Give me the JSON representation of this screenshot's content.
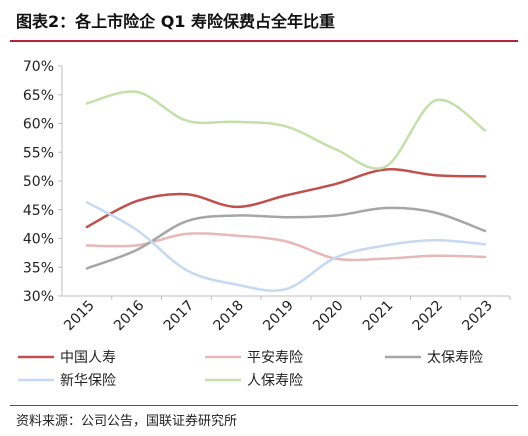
{
  "header": {
    "title": "图表2：各上市险企 Q1 寿险保费占全年比重"
  },
  "footer": {
    "source": "资料来源：公司公告，国联证券研究所"
  },
  "chart_data": {
    "type": "line",
    "title": "图表2：各上市险企 Q1 寿险保费占全年比重",
    "x": [
      "2015",
      "2016",
      "2017",
      "2018",
      "2019",
      "2020",
      "2021",
      "2022",
      "2023"
    ],
    "ylim": [
      0.3,
      0.7
    ],
    "yticks": [
      "30%",
      "35%",
      "40%",
      "45%",
      "50%",
      "55%",
      "60%",
      "65%",
      "70%"
    ],
    "grid": false,
    "legend_position": "bottom",
    "series": [
      {
        "name": "中国人寿",
        "color": "#c0504d",
        "values": [
          0.42,
          0.465,
          0.477,
          0.455,
          0.475,
          0.495,
          0.52,
          0.51,
          0.508
        ]
      },
      {
        "name": "平安寿险",
        "color": "#e6b9b8",
        "values": [
          0.388,
          0.388,
          0.408,
          0.405,
          0.395,
          0.365,
          0.365,
          0.37,
          0.368
        ]
      },
      {
        "name": "太保寿险",
        "color": "#a6a6a6",
        "values": [
          0.348,
          0.38,
          0.43,
          0.44,
          0.437,
          0.44,
          0.453,
          0.445,
          0.413
        ]
      },
      {
        "name": "新华保险",
        "color": "#c5d9f1",
        "values": [
          0.463,
          0.415,
          0.345,
          0.32,
          0.312,
          0.367,
          0.388,
          0.397,
          0.39
        ]
      },
      {
        "name": "人保寿险",
        "color": "#c3e0a8",
        "values": [
          0.635,
          0.655,
          0.605,
          0.603,
          0.595,
          0.555,
          0.525,
          0.64,
          0.588
        ]
      }
    ]
  }
}
